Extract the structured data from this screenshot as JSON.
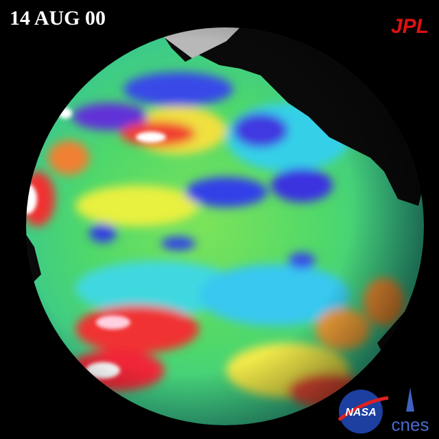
{
  "date_label": "14 AUG 00",
  "logos": {
    "jpl": "JPL",
    "nasa": "NASA",
    "cnes": "cnes"
  }
}
